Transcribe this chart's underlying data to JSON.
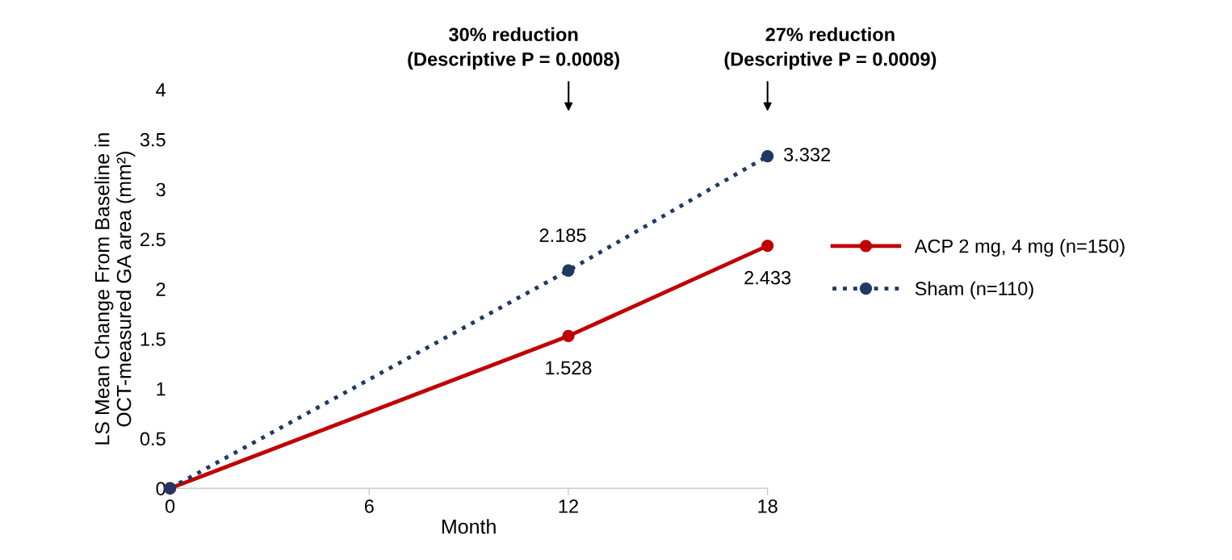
{
  "chart_data": {
    "type": "line",
    "xlabel": "Month",
    "ylabel": "LS Mean Change From Baseline in\nOCT-measured GA area (mm²)",
    "x": [
      0,
      12,
      18
    ],
    "xlim": [
      0,
      18
    ],
    "xticks": [
      0,
      6,
      12,
      18
    ],
    "ylim": [
      0,
      4
    ],
    "yticks": [
      0,
      0.5,
      1,
      1.5,
      2,
      2.5,
      3,
      3.5,
      4
    ],
    "series": [
      {
        "name": "ACP 2 mg, 4 mg (n=150)",
        "color": "#c00000",
        "values": [
          0,
          1.528,
          2.433
        ],
        "value_labels": [
          null,
          "1.528",
          "2.433"
        ],
        "line_style": "solid"
      },
      {
        "name": "Sham (n=110)",
        "color": "#203864",
        "values": [
          0,
          2.185,
          3.332
        ],
        "value_labels": [
          null,
          "2.185",
          "3.332"
        ],
        "line_style": "dotted"
      }
    ],
    "marker": "circle",
    "grid": false,
    "legend": "right",
    "annotations": [
      "30% reduction\n(Descriptive P = 0.0008)",
      "27% reduction\n(Descriptive P = 0.0009)"
    ]
  }
}
